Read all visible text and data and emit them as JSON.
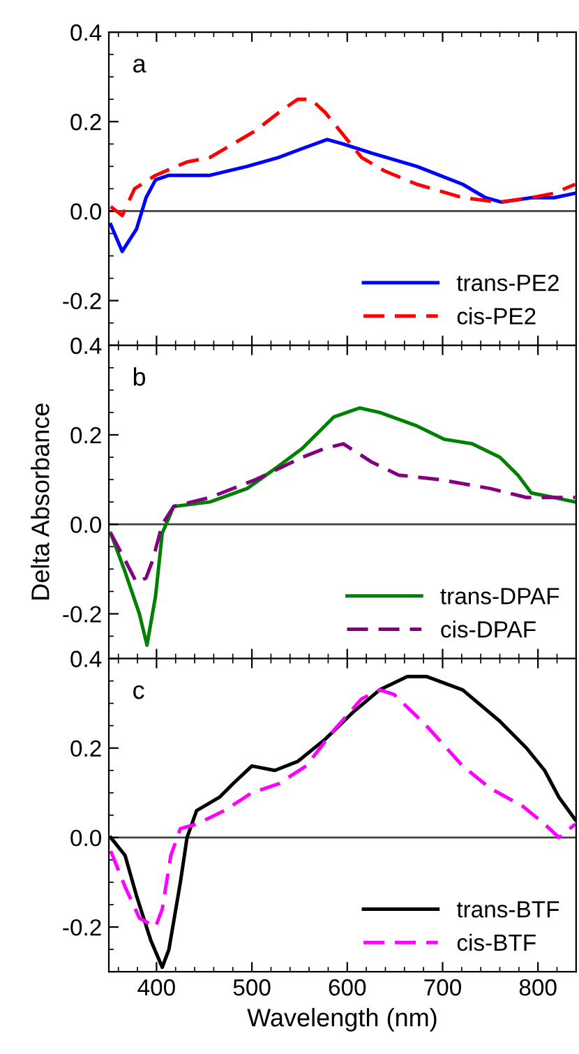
{
  "chart_data": [
    {
      "type": "line",
      "annotations": [
        "a"
      ],
      "xlim": [
        350,
        840
      ],
      "xticks": [
        {
          "value": 400,
          "label": null
        },
        {
          "value": 500,
          "label": null
        },
        {
          "value": 600,
          "label": null
        },
        {
          "value": 700,
          "label": null
        },
        {
          "value": 800,
          "label": null
        }
      ],
      "ylim": [
        -0.3,
        0.4
      ],
      "yticks": [
        {
          "value": -0.2,
          "label": "-0.2"
        },
        {
          "value": 0,
          "label": "0.0"
        },
        {
          "value": 0.2,
          "label": "0.2"
        },
        {
          "value": 0.4,
          "label": "0.4"
        }
      ],
      "tick_labels": "y",
      "legend": "bottom right",
      "grid": false,
      "ref_lines": [
        {
          "axis": "y",
          "value": 0,
          "color": "#404040"
        }
      ],
      "series": [
        {
          "name": "trans-PE2",
          "color": "#0000ff",
          "line_style": "solid",
          "x": [
            352,
            364,
            379,
            389,
            399,
            413,
            456,
            495,
            528,
            553,
            579,
            596,
            625,
            673,
            721,
            745,
            762,
            793,
            817,
            839
          ],
          "values": [
            -0.03,
            -0.09,
            -0.04,
            0.03,
            0.07,
            0.08,
            0.08,
            0.1,
            0.12,
            0.14,
            0.16,
            0.15,
            0.13,
            0.1,
            0.06,
            0.03,
            0.02,
            0.03,
            0.03,
            0.04
          ]
        },
        {
          "name": "cis-PE2",
          "color": "#ff0000",
          "line_style": "dashed",
          "x": [
            352,
            364,
            377,
            399,
            432,
            456,
            480,
            504,
            528,
            548,
            562,
            577,
            596,
            615,
            639,
            673,
            721,
            759,
            793,
            817,
            839
          ],
          "values": [
            0.01,
            -0.01,
            0.05,
            0.08,
            0.11,
            0.12,
            0.15,
            0.18,
            0.22,
            0.25,
            0.25,
            0.22,
            0.17,
            0.12,
            0.09,
            0.06,
            0.03,
            0.02,
            0.03,
            0.04,
            0.06
          ]
        }
      ]
    },
    {
      "type": "line",
      "annotations": [
        "b"
      ],
      "ylabel": "Delta Absorbance",
      "xlim": [
        350,
        840
      ],
      "xticks": [
        {
          "value": 400,
          "label": null
        },
        {
          "value": 500,
          "label": null
        },
        {
          "value": 600,
          "label": null
        },
        {
          "value": 700,
          "label": null
        },
        {
          "value": 800,
          "label": null
        }
      ],
      "ylim": [
        -0.3,
        0.4
      ],
      "yticks": [
        {
          "value": -0.2,
          "label": "-0.2"
        },
        {
          "value": 0,
          "label": "0.0"
        },
        {
          "value": 0.2,
          "label": "0.2"
        },
        {
          "value": 0.4,
          "label": "0.4"
        }
      ],
      "tick_labels": "y",
      "legend": "bottom right",
      "grid": false,
      "ref_lines": [
        {
          "axis": "y",
          "value": 0,
          "color": "#404040"
        }
      ],
      "series": [
        {
          "name": "trans-DPAF",
          "color": "#008000",
          "line_style": "solid",
          "x": [
            352,
            366,
            382,
            390,
            399,
            406,
            418,
            456,
            495,
            528,
            553,
            586,
            613,
            634,
            673,
            702,
            731,
            760,
            779,
            793,
            817,
            839
          ],
          "values": [
            -0.02,
            -0.1,
            -0.2,
            -0.27,
            -0.16,
            -0.02,
            0.04,
            0.05,
            0.08,
            0.13,
            0.17,
            0.24,
            0.26,
            0.25,
            0.22,
            0.19,
            0.18,
            0.15,
            0.11,
            0.07,
            0.06,
            0.05
          ]
        },
        {
          "name": "cis-DPAF",
          "color": "#800080",
          "line_style": "dashed",
          "x": [
            352,
            367,
            379,
            389,
            396,
            406,
            418,
            456,
            504,
            553,
            577,
            596,
            625,
            654,
            697,
            750,
            788,
            817,
            839
          ],
          "values": [
            -0.02,
            -0.08,
            -0.13,
            -0.12,
            -0.08,
            0.0,
            0.04,
            0.06,
            0.1,
            0.15,
            0.17,
            0.18,
            0.14,
            0.11,
            0.1,
            0.08,
            0.06,
            0.06,
            0.06
          ]
        }
      ]
    },
    {
      "type": "line",
      "annotations": [
        "c"
      ],
      "xlabel": "Wavelength (nm)",
      "xlim": [
        350,
        840
      ],
      "xticks": [
        400,
        500,
        600,
        700,
        800
      ],
      "ylim": [
        -0.3,
        0.4
      ],
      "yticks": [
        {
          "value": -0.2,
          "label": "-0.2"
        },
        {
          "value": 0,
          "label": "0.0"
        },
        {
          "value": 0.2,
          "label": "0.2"
        },
        {
          "value": 0.4,
          "label": "0.4"
        }
      ],
      "legend": "bottom right",
      "grid": false,
      "ref_lines": [
        {
          "axis": "y",
          "value": 0,
          "color": "#404040"
        }
      ],
      "series": [
        {
          "name": "trans-BTF",
          "color": "#000000",
          "line_style": "solid",
          "x": [
            352,
            367,
            379,
            394,
            406,
            413,
            425,
            432,
            442,
            466,
            480,
            500,
            524,
            548,
            577,
            606,
            634,
            663,
            683,
            721,
            760,
            788,
            807,
            822,
            839
          ],
          "values": [
            0.0,
            -0.04,
            -0.13,
            -0.23,
            -0.29,
            -0.25,
            -0.1,
            0.0,
            0.06,
            0.09,
            0.12,
            0.16,
            0.15,
            0.17,
            0.22,
            0.28,
            0.33,
            0.36,
            0.36,
            0.33,
            0.26,
            0.2,
            0.15,
            0.09,
            0.04
          ]
        },
        {
          "name": "cis-BTF",
          "color": "#ff00ff",
          "line_style": "dashed",
          "x": [
            352,
            367,
            382,
            399,
            406,
            415,
            425,
            442,
            471,
            500,
            528,
            557,
            586,
            615,
            634,
            649,
            683,
            721,
            750,
            784,
            807,
            822,
            839
          ],
          "values": [
            -0.03,
            -0.11,
            -0.18,
            -0.2,
            -0.16,
            -0.04,
            0.02,
            0.03,
            0.06,
            0.1,
            0.12,
            0.16,
            0.24,
            0.31,
            0.33,
            0.32,
            0.25,
            0.16,
            0.11,
            0.07,
            0.03,
            0.0,
            0.03
          ]
        }
      ]
    }
  ]
}
